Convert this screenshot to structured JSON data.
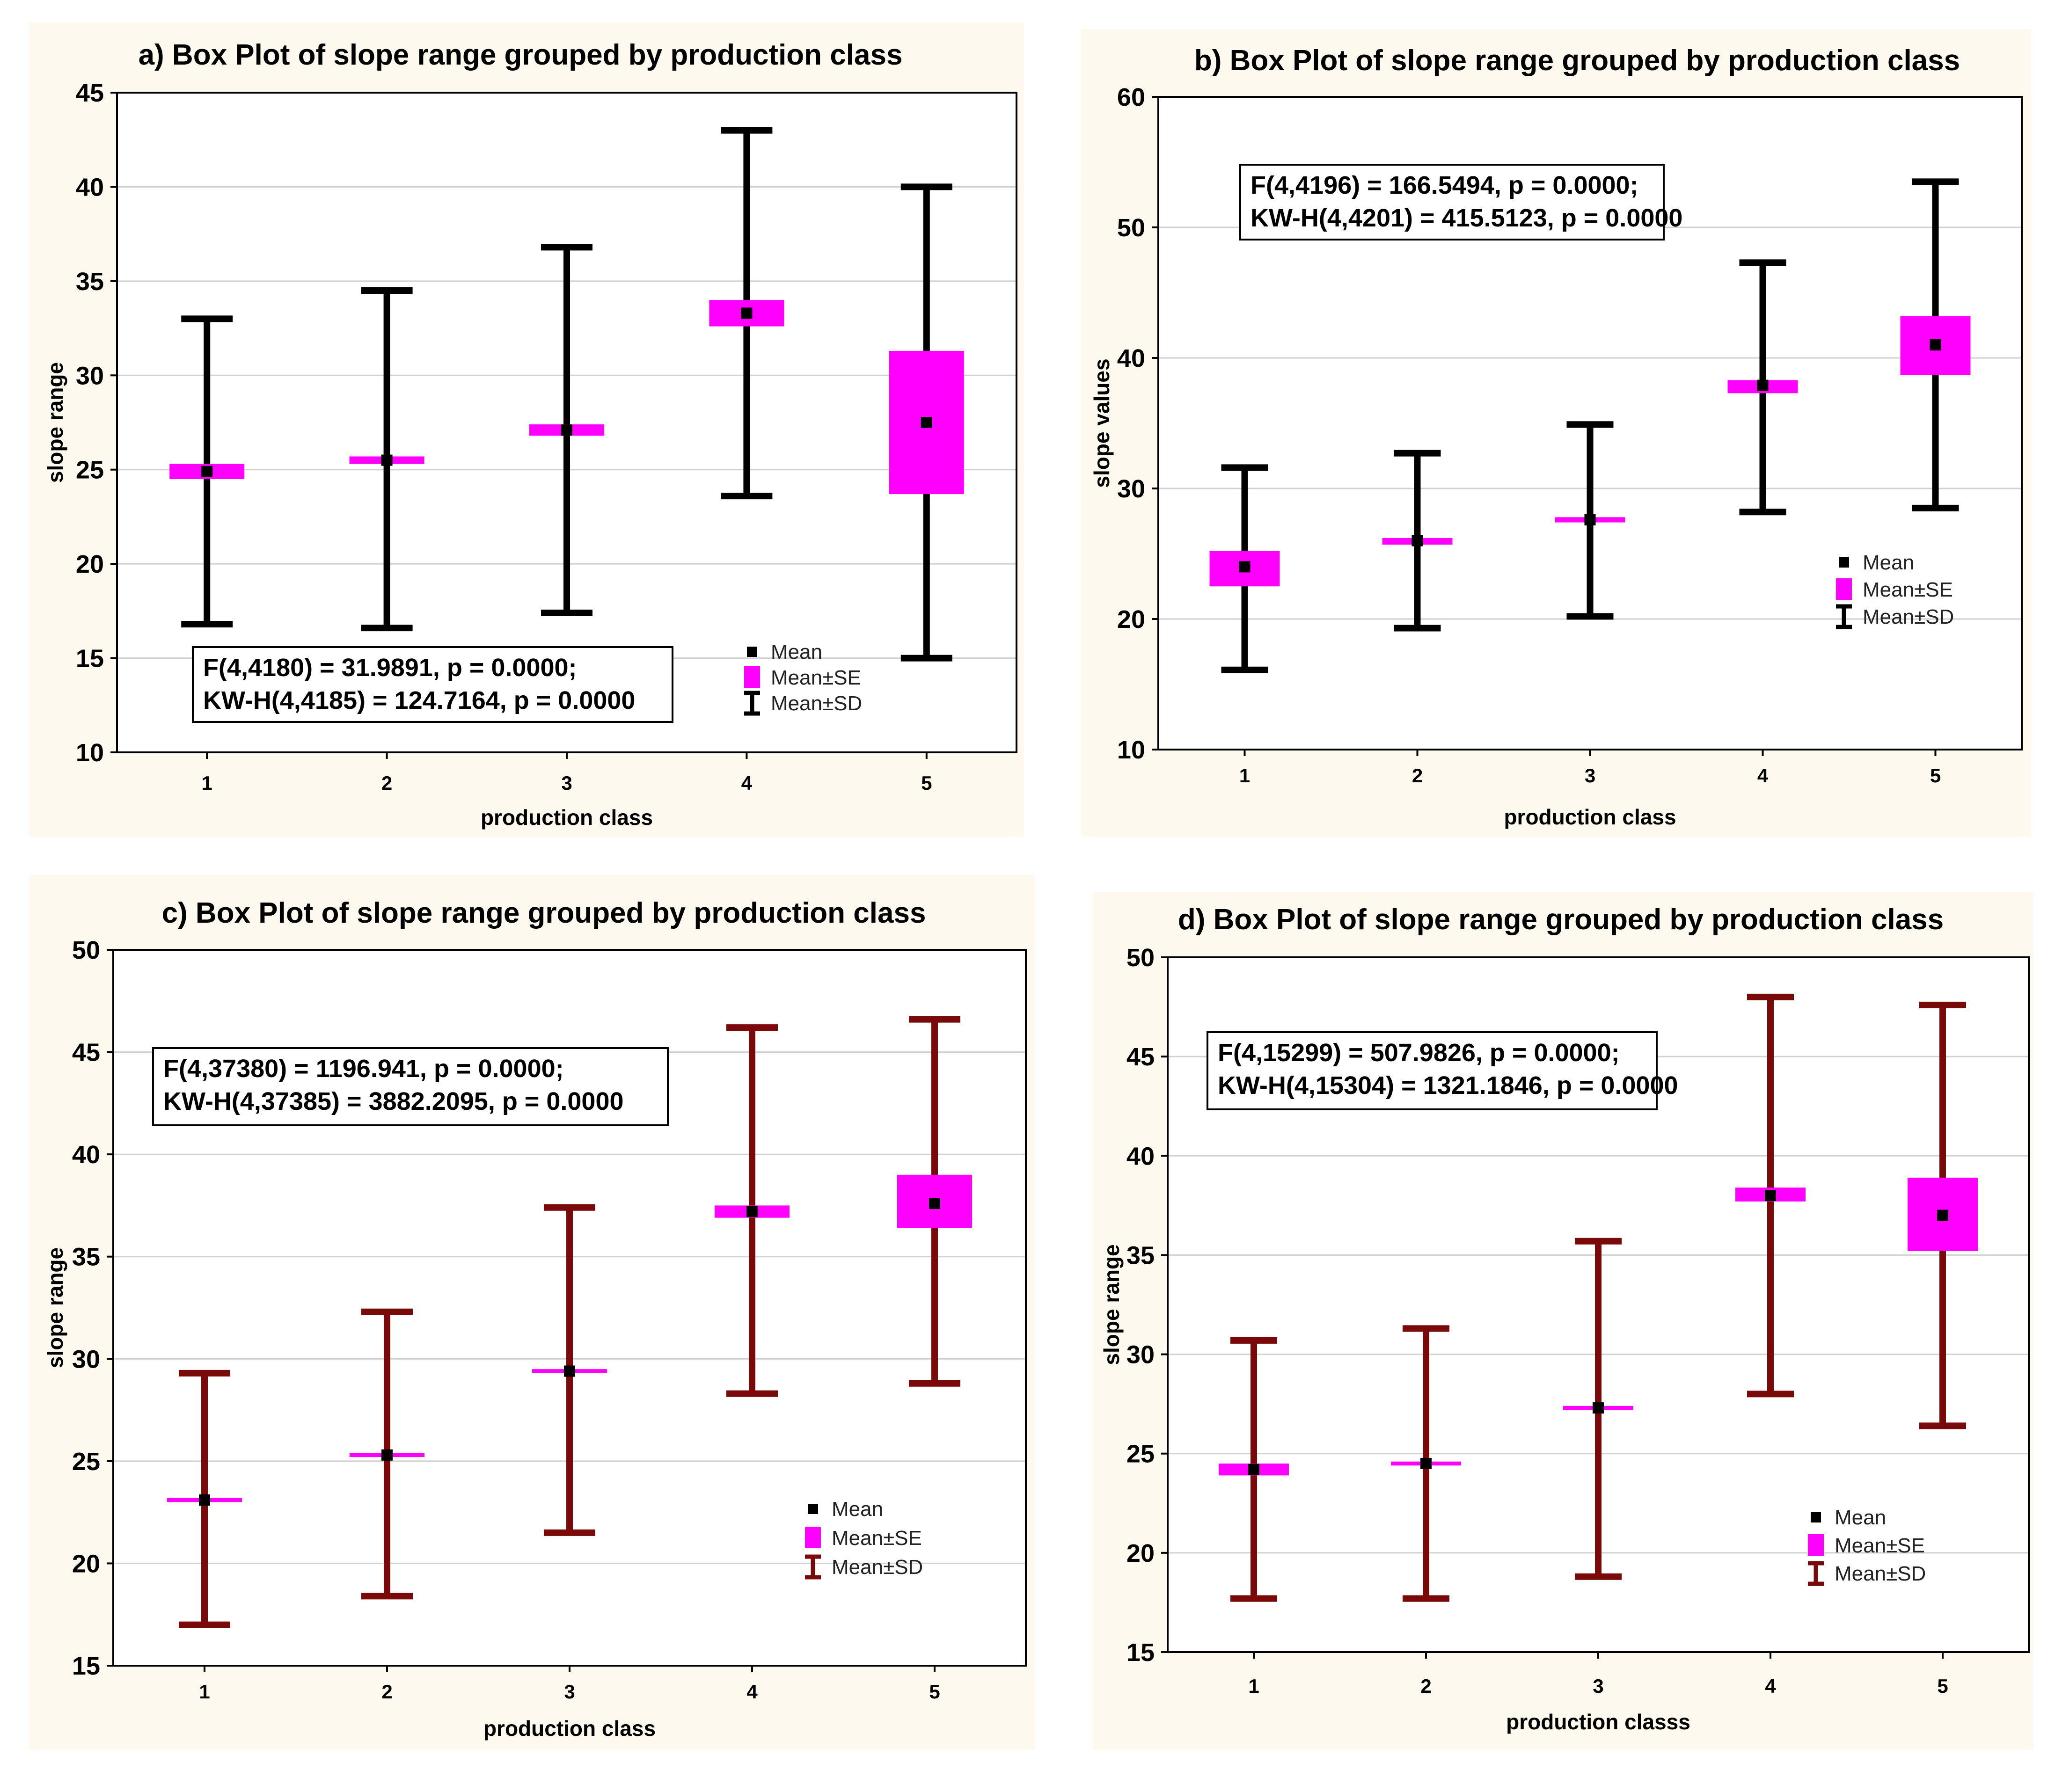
{
  "chart_data": [
    {
      "type": "box",
      "panel": "a",
      "title": "a) Box Plot of slope range grouped by production class",
      "xlabel": "production class",
      "ylabel": "slope range",
      "ylim": [
        10,
        45
      ],
      "yticks": [
        10,
        15,
        20,
        25,
        30,
        35,
        40,
        45
      ],
      "categories": [
        "1",
        "2",
        "3",
        "4",
        "5"
      ],
      "mean": [
        24.9,
        25.5,
        27.1,
        33.3,
        27.5
      ],
      "se_low": [
        24.5,
        25.3,
        26.8,
        32.6,
        23.7
      ],
      "se_high": [
        25.3,
        25.7,
        27.4,
        34.0,
        31.3
      ],
      "sd_low": [
        16.8,
        16.6,
        17.4,
        23.6,
        15.0
      ],
      "sd_high": [
        33.0,
        34.5,
        36.8,
        43.0,
        40.0
      ],
      "whisker_color": "#000000",
      "box_color": "#ff00ff",
      "stats": [
        "F(4,4180) = 31.9891, p = 0.0000;",
        "KW-H(4,4185) = 124.7164, p = 0.0000"
      ],
      "legend": [
        "Mean",
        "Mean±SE",
        "Mean±SD"
      ]
    },
    {
      "type": "box",
      "panel": "b",
      "title": "b) Box Plot of slope range grouped by production class",
      "xlabel": "production class",
      "ylabel": "slope values",
      "ylim": [
        10,
        60
      ],
      "yticks": [
        10,
        20,
        30,
        40,
        50,
        60
      ],
      "categories": [
        "1",
        "2",
        "3",
        "4",
        "5"
      ],
      "mean": [
        24.0,
        26.0,
        27.6,
        37.9,
        41.0
      ],
      "se_low": [
        22.5,
        25.7,
        27.4,
        37.3,
        38.7
      ],
      "se_high": [
        25.2,
        26.2,
        27.8,
        38.3,
        43.2
      ],
      "sd_low": [
        16.1,
        19.3,
        20.2,
        28.2,
        28.5
      ],
      "sd_high": [
        31.6,
        32.7,
        34.9,
        47.3,
        53.5
      ],
      "whisker_color": "#000000",
      "box_color": "#ff00ff",
      "stats": [
        "F(4,4196) = 166.5494, p = 0.0000;",
        "KW-H(4,4201) = 415.5123, p = 0.0000"
      ],
      "legend": [
        "Mean",
        "Mean±SE",
        "Mean±SD"
      ]
    },
    {
      "type": "box",
      "panel": "c",
      "title": "c) Box Plot of slope range grouped by production class",
      "xlabel": "production class",
      "ylabel": "slope range",
      "ylim": [
        15,
        50
      ],
      "yticks": [
        15,
        20,
        25,
        30,
        35,
        40,
        45,
        50
      ],
      "categories": [
        "1",
        "2",
        "3",
        "4",
        "5"
      ],
      "mean": [
        23.1,
        25.3,
        29.4,
        37.2,
        37.6
      ],
      "se_low": [
        23.0,
        25.2,
        29.3,
        36.9,
        36.4
      ],
      "se_high": [
        23.2,
        25.4,
        29.5,
        37.5,
        39.0
      ],
      "sd_low": [
        17.0,
        18.4,
        21.5,
        28.3,
        28.8
      ],
      "sd_high": [
        29.3,
        32.3,
        37.4,
        46.2,
        46.6
      ],
      "whisker_color": "#7a0a0a",
      "box_color": "#ff00ff",
      "stats": [
        "F(4,37380) = 1196.941, p = 0.0000;",
        "KW-H(4,37385) = 3882.2095, p = 0.0000"
      ],
      "legend": [
        "Mean",
        "Mean±SE",
        "Mean±SD"
      ]
    },
    {
      "type": "box",
      "panel": "d",
      "title": "d) Box Plot of slope range grouped by production class",
      "xlabel": "production classs",
      "ylabel": "slope range",
      "ylim": [
        15,
        50
      ],
      "yticks": [
        15,
        20,
        25,
        30,
        35,
        40,
        45,
        50
      ],
      "categories": [
        "1",
        "2",
        "3",
        "4",
        "5"
      ],
      "mean": [
        24.2,
        24.5,
        27.3,
        38.0,
        37.0
      ],
      "se_low": [
        23.9,
        24.4,
        27.2,
        37.7,
        35.2
      ],
      "se_high": [
        24.5,
        24.6,
        27.4,
        38.4,
        38.9
      ],
      "sd_low": [
        17.7,
        17.7,
        18.8,
        28.0,
        26.4
      ],
      "sd_high": [
        30.7,
        31.3,
        35.7,
        48.0,
        47.6
      ],
      "whisker_color": "#7a0a0a",
      "box_color": "#ff00ff",
      "stats": [
        "F(4,15299) = 507.9826, p = 0.0000;",
        "KW-H(4,15304) = 1321.1846, p = 0.0000"
      ],
      "legend": [
        "Mean",
        "Mean±SE",
        "Mean±SD"
      ]
    }
  ]
}
